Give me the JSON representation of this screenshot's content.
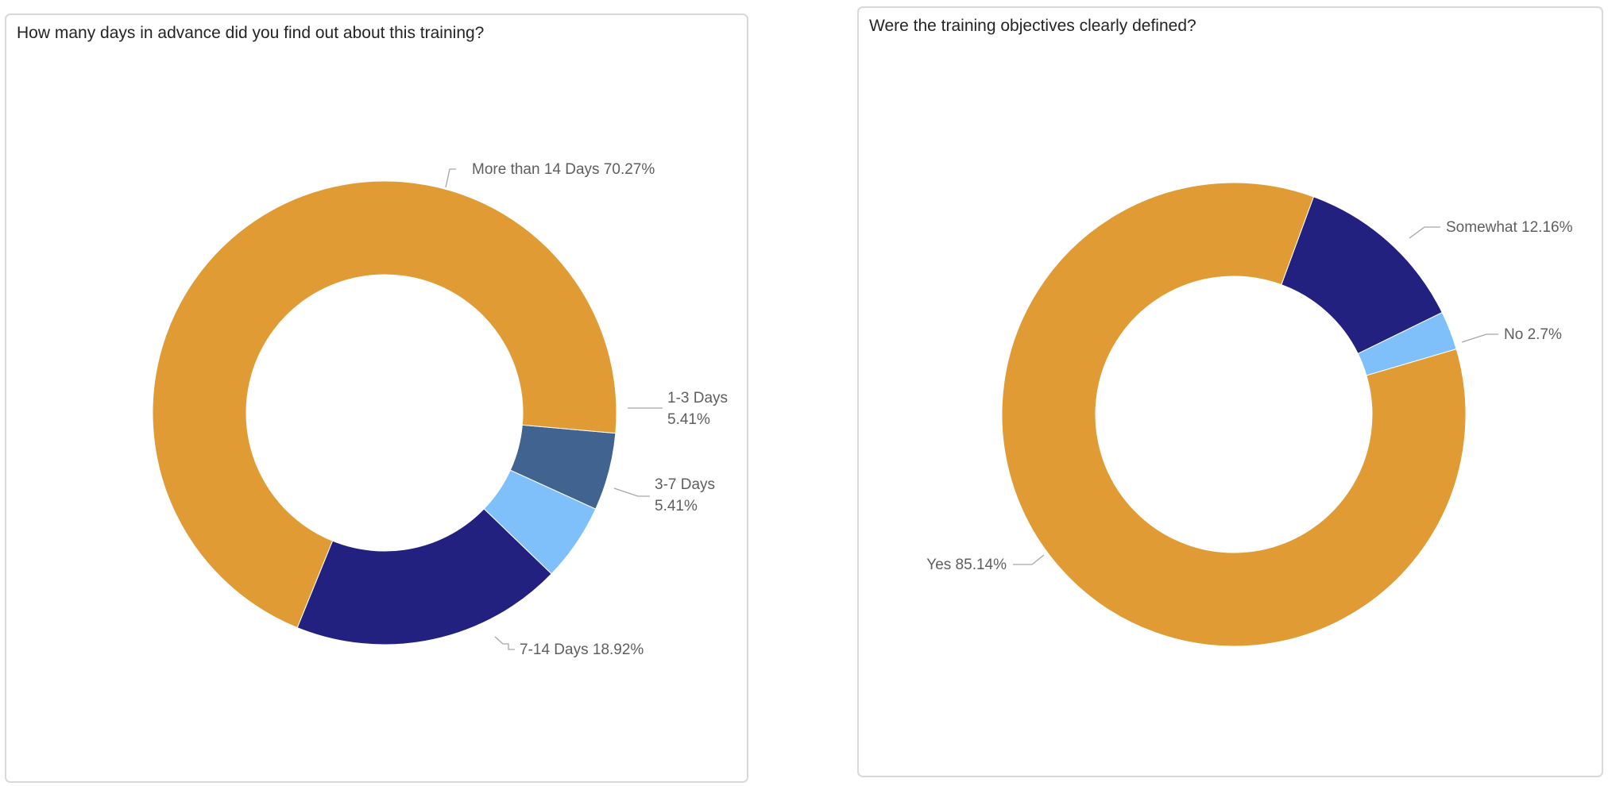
{
  "chart_data": [
    {
      "type": "donut",
      "title": "How many days in advance did you find out about this training?",
      "slices": [
        {
          "name": "1-3 Days",
          "value": 5.41,
          "color": "#41638f",
          "label_lines": [
            "1-3 Days",
            "5.41%"
          ]
        },
        {
          "name": "3-7 Days",
          "value": 5.41,
          "color": "#7fbffa",
          "label_lines": [
            "3-7 Days",
            "5.41%"
          ]
        },
        {
          "name": "7-14 Days",
          "value": 18.92,
          "color": "#232180",
          "label_lines": [
            "7-14 Days 18.92%"
          ]
        },
        {
          "name": "More than 14 Days",
          "value": 70.27,
          "color": "#e09b35",
          "label_lines": [
            "More than 14 Days 70.27%"
          ]
        }
      ]
    },
    {
      "type": "donut",
      "title": "Were the training objectives clearly defined?",
      "slices": [
        {
          "name": "Somewhat",
          "value": 12.16,
          "color": "#232180",
          "label_lines": [
            "Somewhat 12.16%"
          ]
        },
        {
          "name": "No",
          "value": 2.7,
          "color": "#7fbffa",
          "label_lines": [
            "No 2.7%"
          ]
        },
        {
          "name": "Yes",
          "value": 85.14,
          "color": "#e09b35",
          "label_lines": [
            "Yes 85.14%"
          ]
        }
      ]
    }
  ]
}
